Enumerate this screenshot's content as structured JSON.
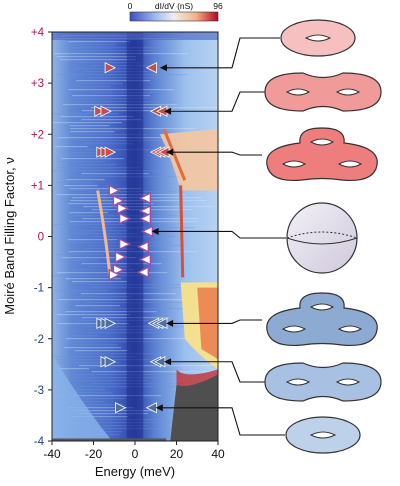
{
  "chart_data": {
    "type": "heatmap",
    "title": "",
    "xlabel": "Energy (meV)",
    "ylabel": "Moiré Band Filling Factor, ν",
    "xlim": [
      -40,
      40
    ],
    "ylim": [
      -4,
      4
    ],
    "x_ticks": [
      "-40",
      "-20",
      "0",
      "20",
      "40"
    ],
    "y_ticks": [
      {
        "value": 4,
        "label": "+4",
        "color": "#b0164f"
      },
      {
        "value": 3,
        "label": "+3",
        "color": "#b0164f"
      },
      {
        "value": 2,
        "label": "+2",
        "color": "#b0164f"
      },
      {
        "value": 1,
        "label": "+1",
        "color": "#b0164f"
      },
      {
        "value": 0,
        "label": "0",
        "color": "#b0164f"
      },
      {
        "value": -1,
        "label": "-1",
        "color": "#1f3f8f"
      },
      {
        "value": -2,
        "label": "-2",
        "color": "#1f3f8f"
      },
      {
        "value": -3,
        "label": "-3",
        "color": "#1f3f8f"
      },
      {
        "value": -4,
        "label": "-4",
        "color": "#1f3f8f"
      }
    ],
    "colorbar": {
      "label": "dI/dV (nS)",
      "min": 0,
      "max": 96,
      "min_label": "0",
      "max_label": "96",
      "colors": [
        "#3a4ec0",
        "#9bb8ee",
        "#f0eeee",
        "#f4b183",
        "#b40426"
      ]
    },
    "markers": [
      {
        "filling": 3.3,
        "energies": [
          -12
        ],
        "direction": "right",
        "color": "#c0504d"
      },
      {
        "filling": 3.3,
        "energies": [
          8
        ],
        "direction": "left",
        "color": "#c0504d"
      },
      {
        "filling": 2.45,
        "energies": [
          -17,
          -14
        ],
        "direction": "right",
        "color": "#c0504d"
      },
      {
        "filling": 2.45,
        "energies": [
          10,
          13
        ],
        "direction": "left",
        "color": "#c0504d"
      },
      {
        "filling": 1.65,
        "energies": [
          -16,
          -14,
          -12
        ],
        "direction": "right",
        "color": "#c0504d"
      },
      {
        "filling": 1.65,
        "energies": [
          10,
          12,
          14
        ],
        "direction": "left",
        "color": "#c0504d"
      },
      {
        "filling": 0.9,
        "energies": [
          -10
        ],
        "direction": "right",
        "color": "#9b4fa8"
      },
      {
        "filling": 0.75,
        "energies": [
          5
        ],
        "direction": "left",
        "color": "#9b4fa8"
      },
      {
        "filling": 0.7,
        "energies": [
          -8
        ],
        "direction": "right",
        "color": "#9b4fa8"
      },
      {
        "filling": 0.55,
        "energies": [
          -6
        ],
        "direction": "right",
        "color": "#9b4fa8"
      },
      {
        "filling": 0.5,
        "energies": [
          5
        ],
        "direction": "left",
        "color": "#9b4fa8"
      },
      {
        "filling": 0.35,
        "energies": [
          -5
        ],
        "direction": "right",
        "color": "#9b4fa8"
      },
      {
        "filling": 0.35,
        "energies": [
          5
        ],
        "direction": "left",
        "color": "#9b4fa8"
      },
      {
        "filling": 0.1,
        "energies": [
          6
        ],
        "direction": "left",
        "color": "#9b4fa8"
      },
      {
        "filling": -0.15,
        "energies": [
          -5
        ],
        "direction": "right",
        "color": "#9b4fa8"
      },
      {
        "filling": -0.2,
        "energies": [
          4
        ],
        "direction": "left",
        "color": "#9b4fa8"
      },
      {
        "filling": -0.4,
        "energies": [
          -7
        ],
        "direction": "right",
        "color": "#9b4fa8"
      },
      {
        "filling": -0.45,
        "energies": [
          5
        ],
        "direction": "left",
        "color": "#9b4fa8"
      },
      {
        "filling": -0.65,
        "energies": [
          -8
        ],
        "direction": "right",
        "color": "#9b4fa8"
      },
      {
        "filling": -0.7,
        "energies": [
          4
        ],
        "direction": "left",
        "color": "#9b4fa8"
      },
      {
        "filling": -0.75,
        "energies": [
          -10
        ],
        "direction": "right",
        "color": "#9b4fa8"
      },
      {
        "filling": -1.7,
        "energies": [
          -16,
          -14,
          -12
        ],
        "direction": "right",
        "color": "#4f6fa0"
      },
      {
        "filling": -1.7,
        "energies": [
          9,
          11,
          13
        ],
        "direction": "left",
        "color": "#4f6fa0"
      },
      {
        "filling": -2.45,
        "energies": [
          -14,
          -12
        ],
        "direction": "right",
        "color": "#4f6fa0"
      },
      {
        "filling": -2.45,
        "energies": [
          10,
          12
        ],
        "direction": "left",
        "color": "#4f6fa0"
      },
      {
        "filling": -3.35,
        "energies": [
          -7
        ],
        "direction": "right",
        "color": "#4f6fa0"
      },
      {
        "filling": -3.35,
        "energies": [
          8
        ],
        "direction": "left",
        "color": "#4f6fa0"
      }
    ],
    "arrows": [
      {
        "filling": 3.3,
        "from_energy": 12,
        "to_surface": "genus-1-red"
      },
      {
        "filling": 2.45,
        "from_energy": 14,
        "to_surface": "genus-2-red"
      },
      {
        "filling": 1.65,
        "from_energy": 15,
        "to_surface": "genus-3-red"
      },
      {
        "filling": 0.1,
        "from_energy": 8,
        "to_surface": "sphere"
      },
      {
        "filling": -1.7,
        "from_energy": 15,
        "to_surface": "genus-3-blue"
      },
      {
        "filling": -2.45,
        "from_energy": 14,
        "to_surface": "genus-2-blue"
      },
      {
        "filling": -3.35,
        "from_energy": 10,
        "to_surface": "genus-1-blue"
      }
    ],
    "surfaces": [
      {
        "id": "genus-1-red",
        "genus": 1,
        "color": "#f6c0c0"
      },
      {
        "id": "genus-2-red",
        "genus": 2,
        "color": "#f19a9a"
      },
      {
        "id": "genus-3-red",
        "genus": 3,
        "color": "#ee7e7e"
      },
      {
        "id": "sphere",
        "genus": 0,
        "color": "#e3dfec"
      },
      {
        "id": "genus-3-blue",
        "genus": 3,
        "color": "#8daad2"
      },
      {
        "id": "genus-2-blue",
        "genus": 2,
        "color": "#a8c1e2"
      },
      {
        "id": "genus-1-blue",
        "genus": 1,
        "color": "#bed1ea"
      }
    ]
  }
}
